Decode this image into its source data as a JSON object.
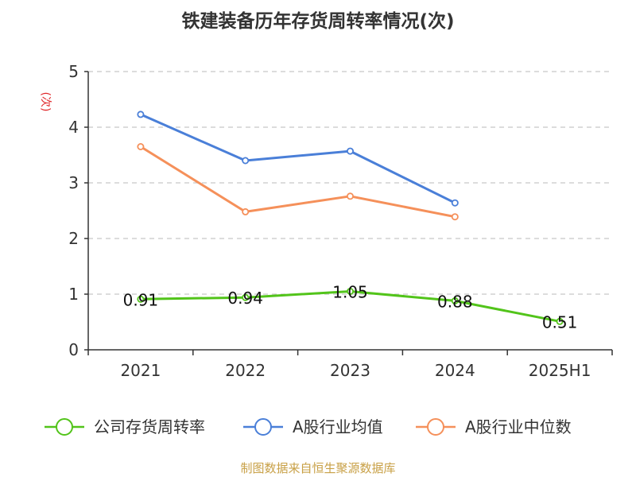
{
  "chart_data": {
    "type": "line",
    "title": "铁建装备历年存货周转率情况(次)",
    "ylabel": "(次)",
    "categories": [
      "2021",
      "2022",
      "2023",
      "2024",
      "2025H1"
    ],
    "ylim": [
      0,
      5
    ],
    "yticks": [
      0,
      1,
      2,
      3,
      4,
      5
    ],
    "grid": true,
    "legend_position": "bottom",
    "series": [
      {
        "name": "公司存货周转率",
        "color": "#52c41a",
        "values": [
          0.91,
          0.94,
          1.05,
          0.88,
          0.51
        ],
        "data_labels": [
          "0.91",
          "0.94",
          "1.05",
          "0.88",
          "0.51"
        ]
      },
      {
        "name": "A股行业均值",
        "color": "#4a7fd8",
        "values": [
          4.23,
          3.4,
          3.57,
          2.64,
          null
        ]
      },
      {
        "name": "A股行业中位数",
        "color": "#f5905a",
        "values": [
          3.65,
          2.48,
          2.76,
          2.39,
          null
        ]
      }
    ]
  },
  "source": "制图数据来自恒生聚源数据库"
}
